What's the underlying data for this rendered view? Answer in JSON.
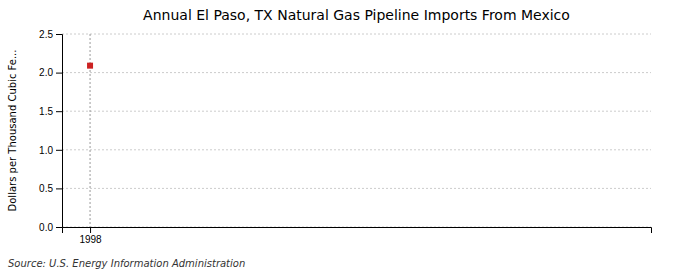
{
  "chart_data": {
    "type": "scatter",
    "title": "Annual El Paso, TX Natural Gas Pipeline Imports From Mexico",
    "ylabel": "Dollars per Thousand Cubic Fe...",
    "source": "Source: U.S. Energy Information Administration",
    "x": [
      1998
    ],
    "values": [
      2.09
    ],
    "color": "#cc2222",
    "marker": "square",
    "xlim": [
      1997.4,
      2010
    ],
    "xticks": [
      1998
    ],
    "ylim": [
      0.0,
      2.5
    ],
    "yticks": [
      {
        "value": 0.0,
        "label": "0.0"
      },
      0.5,
      {
        "value": 1.0,
        "label": "1.0"
      },
      1.5,
      {
        "value": 2.0,
        "label": "2.0"
      },
      2.5
    ],
    "grid": "y",
    "vlines": [
      1998
    ]
  }
}
